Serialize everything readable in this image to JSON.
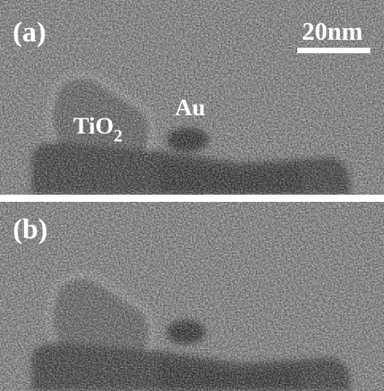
{
  "panels": [
    {
      "label": "(a)"
    },
    {
      "label": "(b)"
    }
  ],
  "scale_bar": "20nm",
  "annotations": {
    "tio2": {
      "text": "TiO",
      "subscript": "2"
    },
    "au": "Au"
  }
}
